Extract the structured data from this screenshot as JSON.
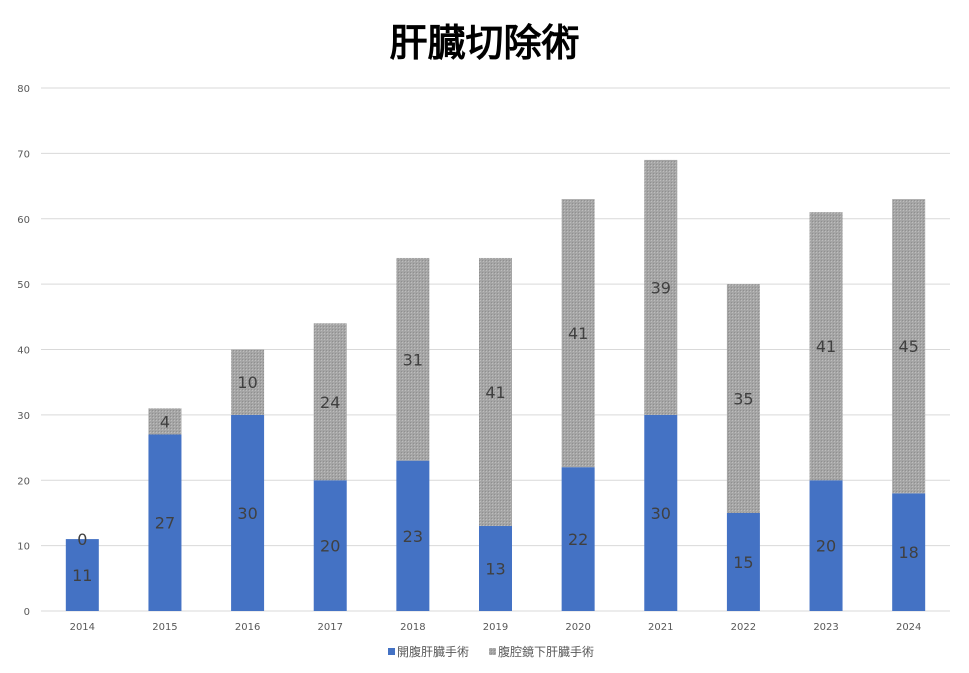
{
  "chart_data": {
    "type": "bar",
    "stacked": true,
    "title": "肝臓切除術",
    "categories": [
      "2014",
      "2015",
      "2016",
      "2017",
      "2018",
      "2019",
      "2020",
      "2021",
      "2022",
      "2023",
      "2024"
    ],
    "series": [
      {
        "name": "開腹肝臓手術",
        "values": [
          11,
          27,
          30,
          20,
          23,
          13,
          22,
          30,
          15,
          20,
          18
        ],
        "color": "#4472C4"
      },
      {
        "name": "腹腔鏡下肝臓手術",
        "values": [
          0,
          4,
          10,
          24,
          31,
          41,
          41,
          39,
          35,
          41,
          45
        ],
        "color": "#A5A5A5"
      }
    ],
    "ylim": [
      0,
      80
    ],
    "yticks": [
      0,
      10,
      20,
      30,
      40,
      50,
      60,
      70,
      80
    ],
    "grid": true,
    "legend": "bottom",
    "data_labels": true
  }
}
